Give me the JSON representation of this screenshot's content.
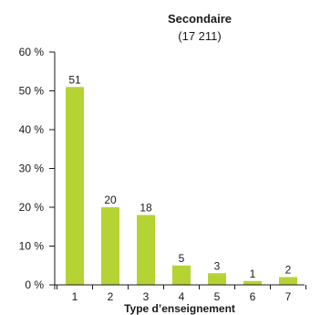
{
  "colors": {
    "bar": "#b5d334",
    "axis": "#1a1a1a"
  },
  "chart_data": {
    "type": "bar",
    "title": "Secondaire",
    "subtitle": "(17 211)",
    "xlabel": "Type d’enseignement",
    "ylabel": "",
    "categories": [
      "1",
      "2",
      "3",
      "4",
      "5",
      "6",
      "7"
    ],
    "values": [
      51,
      20,
      18,
      5,
      3,
      1,
      2
    ],
    "data_labels": [
      "51",
      "20",
      "18",
      "5",
      "3",
      "1",
      "2"
    ],
    "ylim": [
      0,
      60
    ],
    "yticks": [
      0,
      10,
      20,
      30,
      40,
      50,
      60
    ],
    "ytick_labels": [
      "0 %",
      "10 %",
      "20 %",
      "30 %",
      "40 %",
      "50 %",
      "60 %"
    ],
    "grid": false,
    "legend": "none"
  }
}
